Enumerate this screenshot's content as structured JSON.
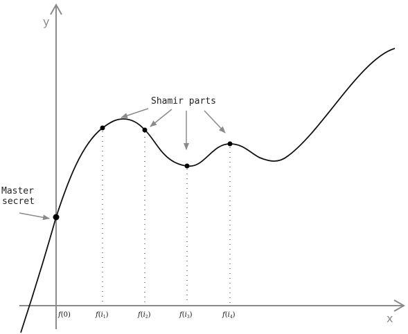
{
  "diagram": {
    "axes": {
      "x_label": "x",
      "y_label": "y"
    },
    "annotations": {
      "shamir_parts": "Shamir parts",
      "master_secret_line1": "Master",
      "master_secret_line2": "secret"
    },
    "tick_labels": [
      {
        "fn": "f",
        "arg": "0",
        "sub": ""
      },
      {
        "fn": "f",
        "arg": "i",
        "sub": "1"
      },
      {
        "fn": "f",
        "arg": "i",
        "sub": "2"
      },
      {
        "fn": "f",
        "arg": "i",
        "sub": "3"
      },
      {
        "fn": "f",
        "arg": "i",
        "sub": "4"
      }
    ],
    "colors": {
      "axis": "#8a8a8a",
      "arrow": "#8a8a8a",
      "curve": "#111111",
      "point": "#000000",
      "dotted_guide": "#444444"
    }
  }
}
